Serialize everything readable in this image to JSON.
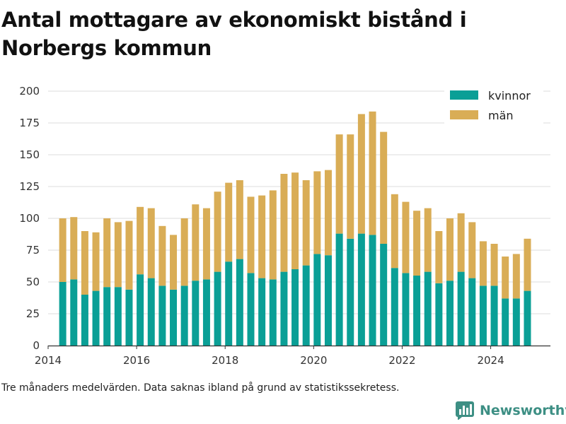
{
  "title": "Antal mottagare av ekonomiskt bistånd i Norbergs kommun",
  "footnote": "Tre månaders medelvärden. Data saknas ibland på grund av statistikssekretess.",
  "brand": {
    "name": "Newsworthy",
    "icon": "bar-chart-logo-icon",
    "color": "#3d8f84"
  },
  "colors": {
    "kvinnor": "#0a9f96",
    "man": "#d9ad56",
    "grid": "#dddddd",
    "axis": "#333333"
  },
  "chart_data": {
    "type": "bar",
    "stacked": true,
    "title": "Antal mottagare av ekonomiskt bistånd i Norbergs kommun",
    "xlabel": "",
    "ylabel": "",
    "ylim": [
      0,
      200
    ],
    "xlim": [
      2014.0,
      2025.35
    ],
    "yticks": [
      0,
      25,
      50,
      75,
      100,
      125,
      150,
      175,
      200
    ],
    "xticks": [
      2014,
      2016,
      2018,
      2020,
      2022,
      2024
    ],
    "grid": true,
    "legend": "top-right",
    "x": [
      2014.33,
      2014.58,
      2014.83,
      2015.08,
      2015.33,
      2015.58,
      2015.83,
      2016.08,
      2016.33,
      2016.58,
      2016.83,
      2017.08,
      2017.33,
      2017.58,
      2017.83,
      2018.08,
      2018.33,
      2018.58,
      2018.83,
      2019.08,
      2019.33,
      2019.58,
      2019.83,
      2020.08,
      2020.33,
      2020.58,
      2020.83,
      2021.08,
      2021.33,
      2021.58,
      2021.83,
      2022.08,
      2022.33,
      2022.58,
      2022.83,
      2023.08,
      2023.33,
      2023.58,
      2023.83,
      2024.08,
      2024.33,
      2024.58,
      2024.83
    ],
    "series": [
      {
        "name": "kvinnor",
        "color": "#0a9f96",
        "values": [
          50,
          52,
          40,
          43,
          46,
          46,
          44,
          56,
          53,
          47,
          44,
          47,
          51,
          52,
          58,
          66,
          68,
          57,
          53,
          52,
          58,
          60,
          63,
          72,
          71,
          88,
          84,
          88,
          87,
          80,
          61,
          57,
          55,
          58,
          49,
          51,
          58,
          53,
          47,
          47,
          37,
          37,
          43
        ]
      },
      {
        "name": "män",
        "color": "#d9ad56",
        "values": [
          50,
          49,
          50,
          46,
          54,
          51,
          54,
          53,
          55,
          47,
          43,
          53,
          60,
          56,
          63,
          62,
          62,
          60,
          65,
          70,
          77,
          76,
          67,
          65,
          67,
          78,
          82,
          94,
          97,
          88,
          58,
          56,
          51,
          50,
          41,
          49,
          46,
          44,
          35,
          33,
          33,
          35,
          41
        ]
      }
    ]
  }
}
